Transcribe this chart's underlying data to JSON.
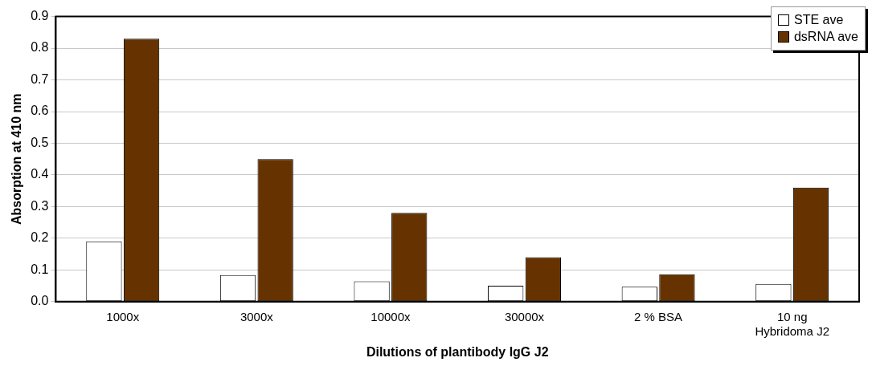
{
  "chart_data": {
    "type": "bar",
    "xlabel": "Dilutions of plantibody IgG J2",
    "ylabel": "Absorption at 410 nm",
    "categories": [
      "1000x",
      "3000x",
      "10000x",
      "30000x",
      "2 % BSA",
      "10 ng\nHybridoma J2"
    ],
    "series": [
      {
        "name": "STE ave",
        "color": "#ffffff",
        "values": [
          0.19,
          0.084,
          0.064,
          0.05,
          0.047,
          0.056
        ]
      },
      {
        "name": "dsRNA ave",
        "color": "#663300",
        "values": [
          0.83,
          0.45,
          0.28,
          0.14,
          0.086,
          0.36
        ]
      }
    ],
    "ylim": [
      0,
      0.9
    ],
    "yticks": [
      {
        "value": 0,
        "label": "0.0"
      },
      0.1,
      0.2,
      0.3,
      0.4,
      0.5,
      0.6,
      0.7,
      0.8,
      0.9
    ],
    "grid": "y",
    "legend": "top right"
  }
}
